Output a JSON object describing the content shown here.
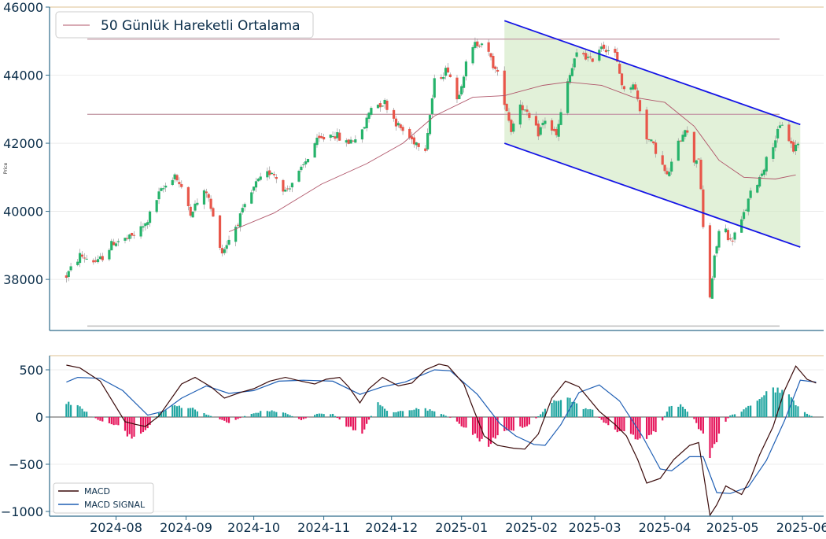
{
  "chart_data": [
    {
      "type": "candlestick",
      "ylabel": "Price",
      "ylim": [
        36500,
        46000
      ],
      "yticks": [
        38000,
        40000,
        42000,
        44000,
        46000
      ],
      "legend": {
        "label": "50 Günlük Hareketli Ortalama",
        "placement": "top-left"
      },
      "grid": true,
      "horizontal_levels": [
        45060,
        42850,
        36630
      ],
      "channel": {
        "upper": {
          "from": [
            "2025-01-20",
            45600
          ],
          "to": [
            "2025-05-31",
            42550
          ]
        },
        "lower": {
          "from": [
            "2025-01-20",
            42000
          ],
          "to": [
            "2025-05-31",
            38950
          ]
        }
      },
      "ma50": {
        "name": "50 Günlük Hareketli Ortalama",
        "points": [
          [
            "2024-09-20",
            39400
          ],
          [
            "2024-10-10",
            39950
          ],
          [
            "2024-10-31",
            40800
          ],
          [
            "2024-11-20",
            41400
          ],
          [
            "2024-12-06",
            42000
          ],
          [
            "2024-12-20",
            42800
          ],
          [
            "2025-01-06",
            43350
          ],
          [
            "2025-01-20",
            43400
          ],
          [
            "2025-02-06",
            43700
          ],
          [
            "2025-02-17",
            43800
          ],
          [
            "2025-03-04",
            43700
          ],
          [
            "2025-03-18",
            43350
          ],
          [
            "2025-04-01",
            43200
          ],
          [
            "2025-04-14",
            42500
          ],
          [
            "2025-04-25",
            41500
          ],
          [
            "2025-05-06",
            41000
          ],
          [
            "2025-05-20",
            40950
          ],
          [
            "2025-05-29",
            41070
          ]
        ]
      },
      "price_path": [
        [
          "2024-07-10",
          38100
        ],
        [
          "2024-07-16",
          38700
        ],
        [
          "2024-07-24",
          38500
        ],
        [
          "2024-07-31",
          39100
        ],
        [
          "2024-08-07",
          39200
        ],
        [
          "2024-08-14",
          39600
        ],
        [
          "2024-08-20",
          40500
        ],
        [
          "2024-08-27",
          41100
        ],
        [
          "2024-09-03",
          40000
        ],
        [
          "2024-09-10",
          40600
        ],
        [
          "2024-09-13",
          39800
        ],
        [
          "2024-09-17",
          38800
        ],
        [
          "2024-09-24",
          39700
        ],
        [
          "2024-10-02",
          40800
        ],
        [
          "2024-10-09",
          41200
        ],
        [
          "2024-10-15",
          40600
        ],
        [
          "2024-10-22",
          41200
        ],
        [
          "2024-10-28",
          42000
        ],
        [
          "2024-11-05",
          42300
        ],
        [
          "2024-11-11",
          42000
        ],
        [
          "2024-11-18",
          42300
        ],
        [
          "2024-11-22",
          43100
        ],
        [
          "2024-11-28",
          43200
        ],
        [
          "2024-12-04",
          42500
        ],
        [
          "2024-12-10",
          42100
        ],
        [
          "2024-12-16",
          41900
        ],
        [
          "2024-12-20",
          43800
        ],
        [
          "2024-12-26",
          44200
        ],
        [
          "2024-12-30",
          43300
        ],
        [
          "2025-01-03",
          44300
        ],
        [
          "2025-01-07",
          44900
        ],
        [
          "2025-01-10",
          45000
        ],
        [
          "2025-01-13",
          44600
        ],
        [
          "2025-01-17",
          44000
        ],
        [
          "2025-01-21",
          43000
        ],
        [
          "2025-01-23",
          42400
        ],
        [
          "2025-01-27",
          43200
        ],
        [
          "2025-01-30",
          42800
        ],
        [
          "2025-02-04",
          42300
        ],
        [
          "2025-02-07",
          42700
        ],
        [
          "2025-02-12",
          42200
        ],
        [
          "2025-02-17",
          43800
        ],
        [
          "2025-02-22",
          44800
        ],
        [
          "2025-02-27",
          44400
        ],
        [
          "2025-03-04",
          44900
        ],
        [
          "2025-03-10",
          44600
        ],
        [
          "2025-03-14",
          43500
        ],
        [
          "2025-03-18",
          43800
        ],
        [
          "2025-03-24",
          42200
        ],
        [
          "2025-03-28",
          41800
        ],
        [
          "2025-04-02",
          41000
        ],
        [
          "2025-04-06",
          41800
        ],
        [
          "2025-04-10",
          42500
        ],
        [
          "2025-04-14",
          41500
        ],
        [
          "2025-04-16",
          41600
        ],
        [
          "2025-04-18",
          39500
        ],
        [
          "2025-04-21",
          37500
        ],
        [
          "2025-04-23",
          38600
        ],
        [
          "2025-04-26",
          39800
        ],
        [
          "2025-04-30",
          39100
        ],
        [
          "2025-05-05",
          39700
        ],
        [
          "2025-05-09",
          40500
        ],
        [
          "2025-05-13",
          41000
        ],
        [
          "2025-05-19",
          42000
        ],
        [
          "2025-05-23",
          42600
        ],
        [
          "2025-05-28",
          41800
        ],
        [
          "2025-05-31",
          42200
        ]
      ]
    },
    {
      "type": "line+bar",
      "ylim": [
        -1050,
        650
      ],
      "yticks": [
        -1000,
        -500,
        0,
        500
      ],
      "legend": {
        "placement": "bottom-left"
      },
      "x_ticks": [
        "2024-08",
        "2024-09",
        "2024-10",
        "2024-11",
        "2024-12",
        "2025-01",
        "2025-02",
        "2025-03",
        "2025-04",
        "2025-05",
        "2025-06"
      ],
      "series": [
        {
          "name": "MACD",
          "color": "#3a0a0a",
          "points": [
            [
              "2024-07-10",
              550
            ],
            [
              "2024-07-16",
              520
            ],
            [
              "2024-07-25",
              380
            ],
            [
              "2024-08-05",
              -50
            ],
            [
              "2024-08-10",
              -80
            ],
            [
              "2024-08-14",
              -100
            ],
            [
              "2024-08-20",
              10
            ],
            [
              "2024-08-30",
              350
            ],
            [
              "2024-09-05",
              420
            ],
            [
              "2024-09-12",
              320
            ],
            [
              "2024-09-18",
              200
            ],
            [
              "2024-09-25",
              260
            ],
            [
              "2024-10-01",
              300
            ],
            [
              "2024-10-08",
              380
            ],
            [
              "2024-10-15",
              420
            ],
            [
              "2024-10-22",
              380
            ],
            [
              "2024-10-28",
              350
            ],
            [
              "2024-11-02",
              400
            ],
            [
              "2024-11-08",
              420
            ],
            [
              "2024-11-12",
              320
            ],
            [
              "2024-11-17",
              150
            ],
            [
              "2024-11-21",
              300
            ],
            [
              "2024-11-27",
              420
            ],
            [
              "2024-12-04",
              330
            ],
            [
              "2024-12-10",
              360
            ],
            [
              "2024-12-16",
              500
            ],
            [
              "2024-12-22",
              560
            ],
            [
              "2024-12-26",
              540
            ],
            [
              "2025-01-02",
              350
            ],
            [
              "2025-01-06",
              100
            ],
            [
              "2025-01-11",
              -200
            ],
            [
              "2025-01-17",
              -300
            ],
            [
              "2025-01-24",
              -330
            ],
            [
              "2025-01-29",
              -340
            ],
            [
              "2025-02-04",
              -180
            ],
            [
              "2025-02-10",
              200
            ],
            [
              "2025-02-16",
              380
            ],
            [
              "2025-02-22",
              320
            ],
            [
              "2025-03-03",
              60
            ],
            [
              "2025-03-10",
              -80
            ],
            [
              "2025-03-15",
              -200
            ],
            [
              "2025-03-20",
              -450
            ],
            [
              "2025-03-24",
              -700
            ],
            [
              "2025-03-30",
              -650
            ],
            [
              "2025-04-05",
              -450
            ],
            [
              "2025-04-12",
              -300
            ],
            [
              "2025-04-16",
              -270
            ],
            [
              "2025-04-21",
              -1040
            ],
            [
              "2025-04-24",
              -930
            ],
            [
              "2025-04-28",
              -730
            ],
            [
              "2025-05-05",
              -820
            ],
            [
              "2025-05-09",
              -650
            ],
            [
              "2025-05-13",
              -400
            ],
            [
              "2025-05-19",
              -100
            ],
            [
              "2025-05-24",
              280
            ],
            [
              "2025-05-29",
              540
            ],
            [
              "2025-06-03",
              400
            ],
            [
              "2025-06-07",
              360
            ]
          ]
        },
        {
          "name": "MACD SIGNAL",
          "color": "#1f5fb4",
          "points": [
            [
              "2024-07-10",
              370
            ],
            [
              "2024-07-15",
              420
            ],
            [
              "2024-07-25",
              410
            ],
            [
              "2024-08-04",
              280
            ],
            [
              "2024-08-15",
              20
            ],
            [
              "2024-08-22",
              60
            ],
            [
              "2024-08-30",
              200
            ],
            [
              "2024-09-10",
              330
            ],
            [
              "2024-09-20",
              250
            ],
            [
              "2024-10-01",
              280
            ],
            [
              "2024-10-12",
              380
            ],
            [
              "2024-10-23",
              390
            ],
            [
              "2024-11-05",
              380
            ],
            [
              "2024-11-17",
              240
            ],
            [
              "2024-11-27",
              320
            ],
            [
              "2024-12-07",
              370
            ],
            [
              "2024-12-20",
              500
            ],
            [
              "2024-12-27",
              490
            ],
            [
              "2025-01-08",
              240
            ],
            [
              "2025-01-18",
              -70
            ],
            [
              "2025-01-25",
              -200
            ],
            [
              "2025-02-02",
              -290
            ],
            [
              "2025-02-07",
              -300
            ],
            [
              "2025-02-14",
              -80
            ],
            [
              "2025-02-22",
              260
            ],
            [
              "2025-03-03",
              340
            ],
            [
              "2025-03-12",
              170
            ],
            [
              "2025-03-22",
              -200
            ],
            [
              "2025-03-30",
              -550
            ],
            [
              "2025-04-04",
              -570
            ],
            [
              "2025-04-12",
              -420
            ],
            [
              "2025-04-18",
              -420
            ],
            [
              "2025-04-24",
              -800
            ],
            [
              "2025-04-30",
              -810
            ],
            [
              "2025-05-08",
              -740
            ],
            [
              "2025-05-16",
              -460
            ],
            [
              "2025-05-24",
              -40
            ],
            [
              "2025-05-31",
              390
            ],
            [
              "2025-06-07",
              370
            ]
          ]
        }
      ],
      "histogram": {
        "positive_color": "#20a5a0",
        "negative_color": "#e6175c",
        "points": [
          [
            "2024-07-10",
            160
          ],
          [
            "2024-07-16",
            100
          ],
          [
            "2024-07-24",
            -30
          ],
          [
            "2024-08-02",
            -100
          ],
          [
            "2024-08-08",
            -220
          ],
          [
            "2024-08-14",
            -140
          ],
          [
            "2024-08-20",
            40
          ],
          [
            "2024-08-27",
            120
          ],
          [
            "2024-09-03",
            100
          ],
          [
            "2024-09-12",
            10
          ],
          [
            "2024-09-20",
            -60
          ],
          [
            "2024-09-28",
            20
          ],
          [
            "2024-10-06",
            70
          ],
          [
            "2024-10-14",
            50
          ],
          [
            "2024-10-22",
            -30
          ],
          [
            "2024-10-30",
            40
          ],
          [
            "2024-11-05",
            30
          ],
          [
            "2024-11-12",
            -110
          ],
          [
            "2024-11-18",
            -160
          ],
          [
            "2024-11-25",
            140
          ],
          [
            "2024-12-01",
            40
          ],
          [
            "2024-12-08",
            80
          ],
          [
            "2024-12-15",
            90
          ],
          [
            "2024-12-22",
            50
          ],
          [
            "2024-12-28",
            -20
          ],
          [
            "2025-01-03",
            -120
          ],
          [
            "2025-01-08",
            -220
          ],
          [
            "2025-01-13",
            -290
          ],
          [
            "2025-01-19",
            -170
          ],
          [
            "2025-01-25",
            -120
          ],
          [
            "2025-01-31",
            -80
          ],
          [
            "2025-02-05",
            30
          ],
          [
            "2025-02-10",
            150
          ],
          [
            "2025-02-16",
            230
          ],
          [
            "2025-02-22",
            110
          ],
          [
            "2025-02-28",
            70
          ],
          [
            "2025-03-05",
            -60
          ],
          [
            "2025-03-11",
            -140
          ],
          [
            "2025-03-17",
            -180
          ],
          [
            "2025-03-23",
            -260
          ],
          [
            "2025-03-29",
            -120
          ],
          [
            "2025-04-03",
            100
          ],
          [
            "2025-04-08",
            120
          ],
          [
            "2025-04-13",
            20
          ],
          [
            "2025-04-18",
            -200
          ],
          [
            "2025-04-21",
            -430
          ],
          [
            "2025-04-26",
            -110
          ],
          [
            "2025-04-30",
            20
          ],
          [
            "2025-05-05",
            50
          ],
          [
            "2025-05-10",
            160
          ],
          [
            "2025-05-16",
            280
          ],
          [
            "2025-05-22",
            300
          ],
          [
            "2025-05-28",
            170
          ],
          [
            "2025-06-03",
            30
          ],
          [
            "2025-06-08",
            -20
          ]
        ]
      }
    }
  ]
}
